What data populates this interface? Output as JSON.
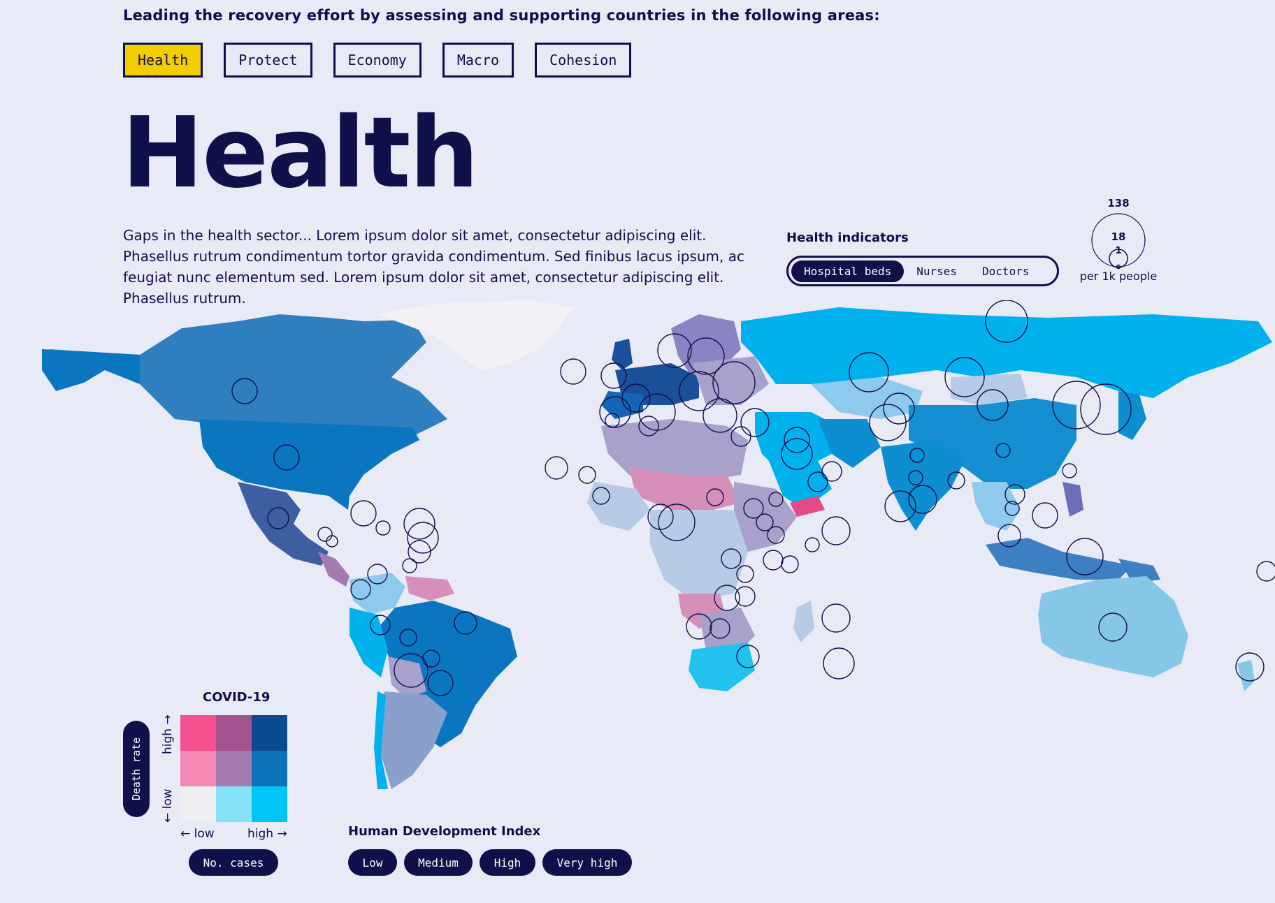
{
  "intro": "Leading the recovery effort by assessing and supporting countries in the following areas:",
  "tabs": [
    {
      "label": "Health",
      "active": true
    },
    {
      "label": "Protect",
      "active": false
    },
    {
      "label": "Economy",
      "active": false
    },
    {
      "label": "Macro",
      "active": false
    },
    {
      "label": "Cohesion",
      "active": false
    }
  ],
  "page_title": "Health",
  "description": "Gaps in the health sector... Lorem ipsum dolor sit amet, consectetur adipiscing elit. Phasellus rutrum condimentum tortor gravida condimentum. Sed finibus lacus ipsum, ac feugiat nunc elementum sed. Lorem ipsum dolor sit amet, consectetur adipiscing elit. Phasellus rutrum.",
  "health_indicators": {
    "label": "Health indicators",
    "options": [
      "Hospital beds",
      "Nurses",
      "Doctors"
    ],
    "selected": "Hospital beds"
  },
  "size_legend": {
    "values": [
      "138",
      "18",
      "1"
    ],
    "unit": "per 1k people"
  },
  "covid_legend": {
    "title": "COVID-19",
    "y_label": "Death rate",
    "y_high": "high →",
    "y_low": "← low",
    "x_low": "← low",
    "x_high": "high →",
    "x_button": "No. cases",
    "colors": [
      [
        "#f7508f",
        "#a3548e",
        "#0b4a8f"
      ],
      [
        "#f68ab5",
        "#a47bb0",
        "#0d73b8"
      ],
      [
        "#eeeef2",
        "#86e2f7",
        "#00c6f8"
      ]
    ]
  },
  "hdi_legend": {
    "title": "Human Development Index",
    "levels": [
      "Low",
      "Medium",
      "High",
      "Very high"
    ]
  },
  "map_colors": {
    "canada": "#2f7fc0",
    "usa": "#0b76c0",
    "mexico": "#3d5fa2",
    "greenland": "#f1f1f6",
    "russia": "#00b1ee",
    "europe": "#1a4f9a",
    "china": "#158fd1",
    "india": "#0d8ed0",
    "brazil": "#0b76c0",
    "australia": "#86c7e8",
    "africa_pink": "#d58fb8",
    "africa_purple": "#a8a1cb",
    "africa_light": "#b7cbe6",
    "south_africa": "#22c2ee",
    "argentina": "#8aa0cc"
  }
}
